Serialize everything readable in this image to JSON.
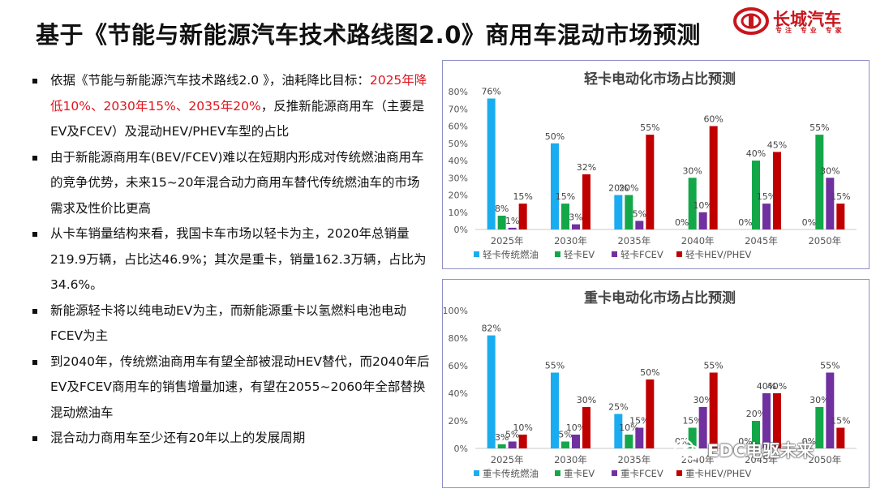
{
  "header": {
    "title": "基于《节能与新能源汽车技术路线图2.0》商用车混动市场预测",
    "logo_text": "长城汽车",
    "logo_tagline": "专注 专业 专家"
  },
  "bullets": [
    {
      "parts": [
        {
          "text": "依据《节能与新能源汽车技术路线2.0 》，油耗降比目标：",
          "red": false
        },
        {
          "text": "2025年降低10%、2030年15%、2035年20%",
          "red": true
        },
        {
          "text": "，反推新能源商用车（主要是EV及FCEV）及混动HEV/PHEV车型的占比",
          "red": false
        }
      ]
    },
    {
      "parts": [
        {
          "text": "由于新能源商用车(BEV/FCEV)难以在短期内形成对传统燃油商用车的竞争优势，未来15~20年混合动力商用车替代传统燃油车的市场需求及性价比更高",
          "red": false
        }
      ]
    },
    {
      "parts": [
        {
          "text": "从卡车销量结构来看，我国卡车市场以轻卡为主，2020年总销量219.9万辆，占比达46.9%；其次是重卡，销量162.3万辆，占比为34.6%。",
          "red": false
        }
      ]
    },
    {
      "parts": [
        {
          "text": "新能源轻卡将以纯电动EV为主，而新能源重卡以氢燃料电池电动FCEV为主",
          "red": false
        }
      ]
    },
    {
      "parts": [
        {
          "text": "到2040年，传统燃油商用车有望全部被混动HEV替代，而2040年后EV及FCEV商用车的销售增量加速，有望在2055~2060年全部替换混动燃油车",
          "red": false
        }
      ]
    },
    {
      "parts": [
        {
          "text": "混合动力商用车至少还有20年以上的发展周期",
          "red": false
        }
      ]
    }
  ],
  "watermark": "EDC电驱未来",
  "chart_data": [
    {
      "type": "bar",
      "title": "轻卡电动化市场占比预测",
      "categories": [
        "2025年",
        "2030年",
        "2035年",
        "2040年",
        "2045年",
        "2050年"
      ],
      "ylim": [
        0,
        80
      ],
      "yticks": [
        "0%",
        "10%",
        "20%",
        "30%",
        "40%",
        "50%",
        "60%",
        "70%",
        "80%"
      ],
      "legend_position": "bottom",
      "series": [
        {
          "name": "轻卡传统燃油",
          "color": "#1aacf0",
          "values": [
            76,
            50,
            20,
            0,
            0,
            0
          ],
          "labels": [
            "76%",
            "50%",
            "20%",
            "0%",
            "0%",
            "0%"
          ]
        },
        {
          "name": "轻卡EV",
          "color": "#14a74a",
          "values": [
            8,
            15,
            20,
            30,
            40,
            55
          ],
          "labels": [
            "8%",
            "15%",
            "20%",
            "30%",
            "40%",
            "55%"
          ]
        },
        {
          "name": "轻卡FCEV",
          "color": "#7030a0",
          "values": [
            1,
            3,
            5,
            10,
            15,
            30
          ],
          "labels": [
            "1%",
            "3%",
            "5%",
            "10%",
            "15%",
            "30%"
          ]
        },
        {
          "name": "轻卡HEV/PHEV",
          "color": "#c00000",
          "values": [
            15,
            32,
            55,
            60,
            45,
            15
          ],
          "labels": [
            "15%",
            "32%",
            "55%",
            "60%",
            "45%",
            "15%"
          ]
        }
      ]
    },
    {
      "type": "bar",
      "title": "重卡电动化市场占比预测",
      "categories": [
        "2025年",
        "2030年",
        "2035年",
        "2040年",
        "2045年",
        "2050年"
      ],
      "ylim": [
        0,
        100
      ],
      "yticks": [
        "0%",
        "20%",
        "40%",
        "60%",
        "80%",
        "100%"
      ],
      "legend_position": "bottom",
      "series": [
        {
          "name": "重卡传统燃油",
          "color": "#1aacf0",
          "values": [
            82,
            55,
            25,
            0,
            0,
            0
          ],
          "labels": [
            "82%",
            "55%",
            "25%",
            "0%",
            "0%",
            "0%"
          ]
        },
        {
          "name": "重卡EV",
          "color": "#14a74a",
          "values": [
            3,
            5,
            10,
            15,
            20,
            30
          ],
          "labels": [
            "3%",
            "5%",
            "10%",
            "15%",
            "20%",
            "30%"
          ]
        },
        {
          "name": "重卡FCEV",
          "color": "#7030a0",
          "values": [
            5,
            10,
            15,
            30,
            40,
            55
          ],
          "labels": [
            "5%",
            "10%",
            "15%",
            "30%",
            "40%",
            "55%"
          ]
        },
        {
          "name": "重卡HEV/PHEV",
          "color": "#c00000",
          "values": [
            10,
            30,
            50,
            55,
            40,
            15
          ],
          "labels": [
            "10%",
            "30%",
            "50%",
            "55%",
            "40%",
            "15%"
          ]
        }
      ]
    }
  ]
}
